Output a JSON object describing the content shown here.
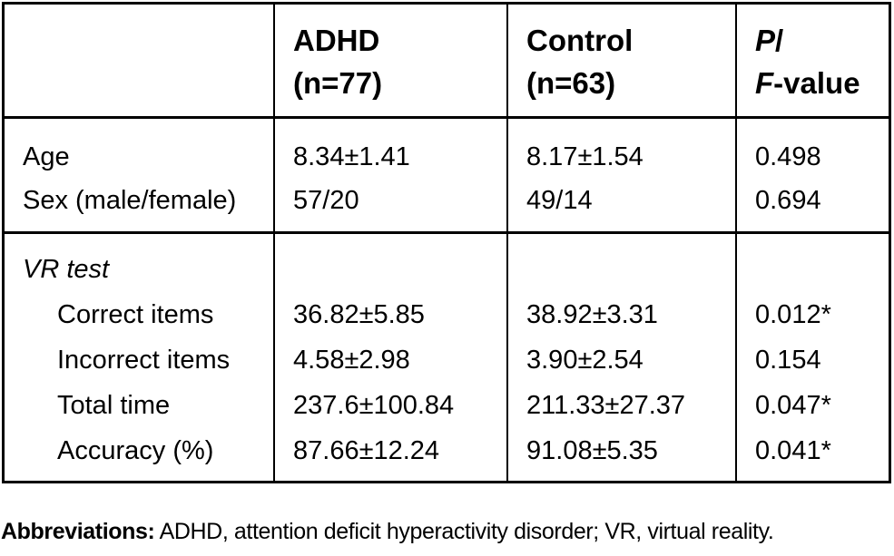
{
  "table": {
    "header": {
      "adhd": {
        "line1": "ADHD",
        "line2": "(n=77)"
      },
      "control": {
        "line1": "Control",
        "line2": "(n=63)"
      },
      "pf": {
        "p_italic": "P",
        "p_slash": "/",
        "f_italic": "F",
        "f_rest": "-value"
      }
    },
    "demographics": {
      "labels": [
        "Age",
        "Sex (male/female)"
      ],
      "adhd": [
        "8.34±1.41",
        "57/20"
      ],
      "control": [
        "8.17±1.54",
        "49/14"
      ],
      "pf": [
        "0.498",
        "0.694"
      ]
    },
    "vr": {
      "section_label": "VR test",
      "labels": [
        "Correct items",
        "Incorrect items",
        "Total time",
        "Accuracy (%)"
      ],
      "adhd": [
        "36.82±5.85",
        "4.58±2.98",
        "237.6±100.84",
        "87.66±12.24"
      ],
      "control": [
        "38.92±3.31",
        "3.90±2.54",
        "211.33±27.37",
        "91.08±5.35"
      ],
      "pf": [
        "0.012*",
        "0.154",
        "0.047*",
        "0.041*"
      ]
    }
  },
  "footnote": {
    "label": "Abbreviations:",
    "text": " ADHD, attention deficit hyperactivity disorder; VR, virtual reality."
  },
  "colors": {
    "border": "#000000",
    "text": "#000000",
    "background": "#ffffff"
  }
}
